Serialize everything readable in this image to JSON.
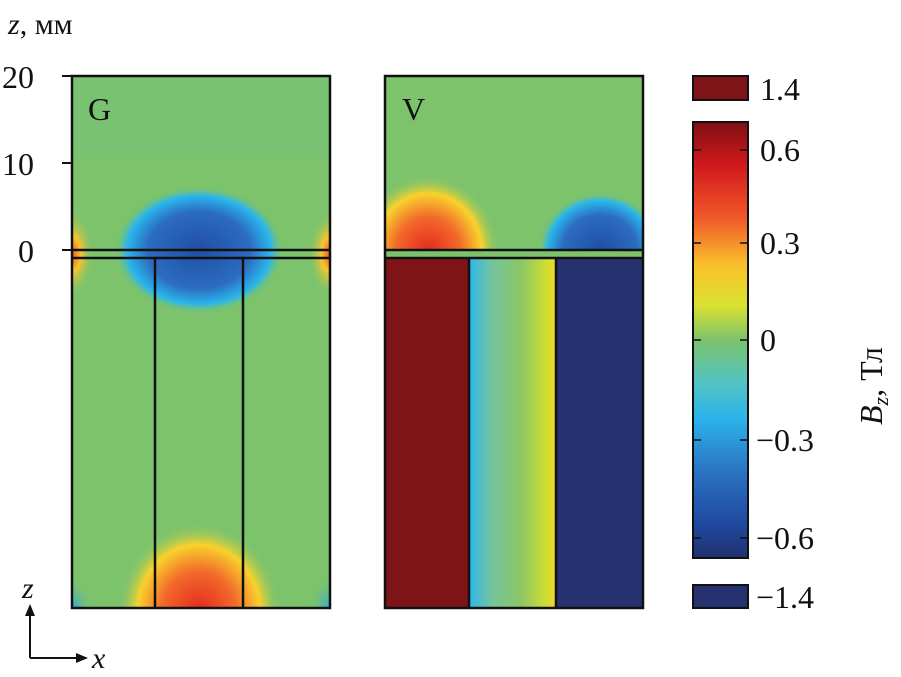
{
  "chart_data": {
    "type": "heatmap",
    "title": "",
    "panels": [
      {
        "label": "G",
        "description_field": "Bz"
      },
      {
        "label": "V",
        "description_field": "Bz"
      }
    ],
    "yaxis": {
      "label_var": "z",
      "label_unit": ", мм",
      "ticks": [
        "20",
        "10",
        "0"
      ],
      "tick_values": [
        20,
        10,
        0
      ]
    },
    "colorbar": {
      "label_var": "B",
      "label_sub": "z",
      "label_unit": ", Тл",
      "ticks": [
        "0.6",
        "0.3",
        "0",
        "−0.3",
        "−0.6"
      ],
      "tick_values": [
        0.6,
        0.3,
        0,
        -0.3,
        -0.6
      ],
      "range": [
        -0.7,
        0.7
      ],
      "saturation_high": "1.4",
      "saturation_low": "−1.4",
      "colormap": "jet",
      "high_color": "#7f1418",
      "low_color": "#263170"
    },
    "axes_indicator": {
      "vertical": "z",
      "horizontal": "x"
    }
  }
}
